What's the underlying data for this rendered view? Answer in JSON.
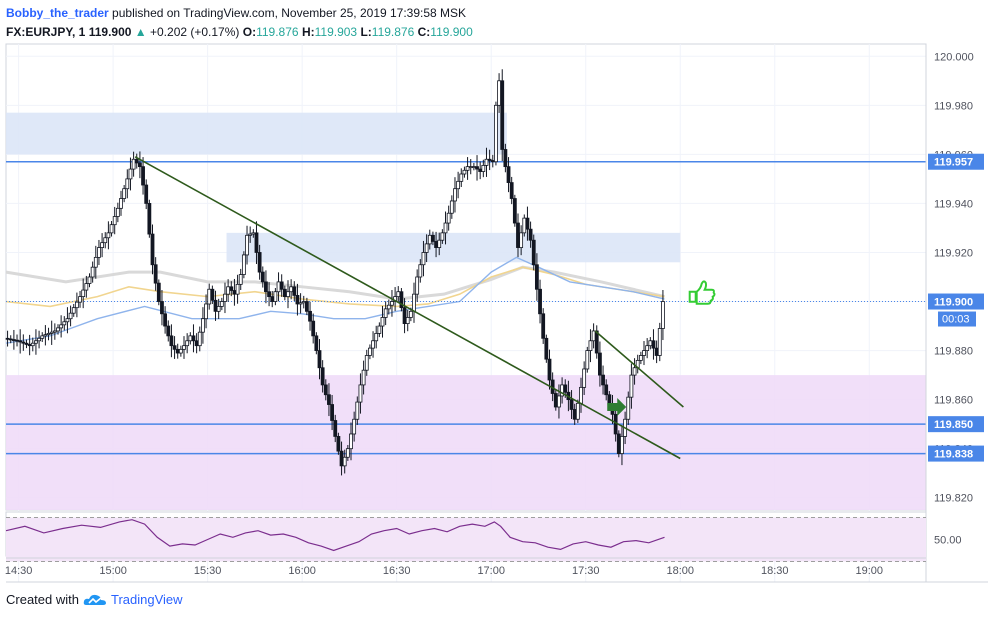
{
  "header": {
    "author": "Bobby_the_trader",
    "published": "published on TradingView.com, November 25, 2019 17:39:58 MSK",
    "symbol": "FX:EURJPY, 1",
    "last": "119.900",
    "change": "+0.202 (+0.17%)",
    "open_label": "O:",
    "open": "119.876",
    "high_label": "H:",
    "high": "119.903",
    "low_label": "L:",
    "low": "119.876",
    "close_label": "C:",
    "close": "119.900"
  },
  "footer": {
    "created_with": "Created with",
    "brand": "TradingView"
  },
  "colors": {
    "up": "#26a69a",
    "candle": "#131722",
    "level": "#4a86e8",
    "trend": "#2e5a1c",
    "zone_blue": "#dce6f7",
    "zone_purple": "#efdcf8",
    "ma_blue": "#8fb4ec",
    "ma_yellow": "#f1d58f",
    "ma_gray": "#d9d9d9",
    "rsi": "#7b2e8e",
    "current": "#4a86e8",
    "thumb": "#33cc33",
    "arrow": "#2e7d32"
  },
  "chart_data": {
    "type": "candlestick",
    "symbol": "FX:EURJPY",
    "timeframe": "1",
    "ylim": [
      119.815,
      120.005
    ],
    "y_ticks": [
      "120.000",
      "119.980",
      "119.960",
      "119.940",
      "119.920",
      "119.900",
      "119.880",
      "119.860",
      "119.840",
      "119.820"
    ],
    "x_ticks": [
      "14:30",
      "15:00",
      "15:30",
      "16:00",
      "16:30",
      "17:00",
      "17:30",
      "18:00",
      "18:30",
      "19:00"
    ],
    "x_tick_minutes": [
      870,
      900,
      930,
      960,
      990,
      1020,
      1050,
      1080,
      1110,
      1140
    ],
    "xlim_minutes": [
      866,
      1158
    ],
    "levels": [
      {
        "price": 119.957,
        "label": "119.957"
      },
      {
        "price": 119.85,
        "label": "119.850"
      },
      {
        "price": 119.838,
        "label": "119.838"
      }
    ],
    "current_price": {
      "price": 119.9,
      "label": "119.900",
      "countdown": "00:03"
    },
    "zones": [
      {
        "t1": 866,
        "t2": 1025,
        "p1": 119.977,
        "p2": 119.96
      },
      {
        "t1": 936,
        "t2": 1080,
        "p1": 119.928,
        "p2": 119.916
      },
      {
        "t1": 866,
        "t2": 1158,
        "p1": 119.87,
        "p2": 119.815
      }
    ],
    "trendlines": [
      {
        "t1": 907,
        "p1": 119.959,
        "t2": 1080,
        "p1e": 119.836,
        "p2": 119.836
      },
      {
        "t1": 1053,
        "p1": 119.888,
        "t2": 1081,
        "p2": 119.857
      }
    ],
    "candles_hint": "approximate 1-minute path",
    "path": [
      [
        866,
        119.885
      ],
      [
        870,
        119.884
      ],
      [
        874,
        119.882
      ],
      [
        878,
        119.886
      ],
      [
        882,
        119.888
      ],
      [
        886,
        119.893
      ],
      [
        890,
        119.902
      ],
      [
        893,
        119.91
      ],
      [
        896,
        119.922
      ],
      [
        899,
        119.928
      ],
      [
        902,
        119.938
      ],
      [
        905,
        119.95
      ],
      [
        907,
        119.958
      ],
      [
        909,
        119.955
      ],
      [
        911,
        119.94
      ],
      [
        913,
        119.915
      ],
      [
        915,
        119.9
      ],
      [
        917,
        119.89
      ],
      [
        919,
        119.882
      ],
      [
        921,
        119.879
      ],
      [
        923,
        119.882
      ],
      [
        925,
        119.886
      ],
      [
        927,
        119.882
      ],
      [
        929,
        119.893
      ],
      [
        931,
        119.905
      ],
      [
        933,
        119.896
      ],
      [
        935,
        119.9
      ],
      [
        937,
        119.906
      ],
      [
        939,
        119.903
      ],
      [
        941,
        119.911
      ],
      [
        943,
        119.927
      ],
      [
        945,
        119.928
      ],
      [
        947,
        119.912
      ],
      [
        949,
        119.904
      ],
      [
        951,
        119.9
      ],
      [
        953,
        119.908
      ],
      [
        955,
        119.902
      ],
      [
        957,
        119.906
      ],
      [
        959,
        119.899
      ],
      [
        961,
        119.9
      ],
      [
        963,
        119.892
      ],
      [
        965,
        119.88
      ],
      [
        967,
        119.866
      ],
      [
        969,
        119.858
      ],
      [
        971,
        119.845
      ],
      [
        973,
        119.833
      ],
      [
        975,
        119.84
      ],
      [
        977,
        119.852
      ],
      [
        979,
        119.866
      ],
      [
        981,
        119.878
      ],
      [
        983,
        119.884
      ],
      [
        985,
        119.89
      ],
      [
        987,
        119.897
      ],
      [
        989,
        119.9
      ],
      [
        991,
        119.904
      ],
      [
        993,
        119.891
      ],
      [
        995,
        119.896
      ],
      [
        997,
        119.91
      ],
      [
        999,
        119.92
      ],
      [
        1001,
        119.927
      ],
      [
        1003,
        119.922
      ],
      [
        1005,
        119.928
      ],
      [
        1007,
        119.936
      ],
      [
        1009,
        119.946
      ],
      [
        1011,
        119.952
      ],
      [
        1013,
        119.955
      ],
      [
        1015,
        119.955
      ],
      [
        1017,
        119.953
      ],
      [
        1019,
        119.958
      ],
      [
        1021,
        119.957
      ],
      [
        1022,
        119.98
      ],
      [
        1023,
        119.99
      ],
      [
        1024,
        119.962
      ],
      [
        1025,
        119.955
      ],
      [
        1027,
        119.942
      ],
      [
        1029,
        119.922
      ],
      [
        1031,
        119.934
      ],
      [
        1033,
        119.925
      ],
      [
        1035,
        119.905
      ],
      [
        1037,
        119.885
      ],
      [
        1039,
        119.868
      ],
      [
        1041,
        119.857
      ],
      [
        1043,
        119.866
      ],
      [
        1045,
        119.86
      ],
      [
        1047,
        119.852
      ],
      [
        1049,
        119.865
      ],
      [
        1051,
        119.88
      ],
      [
        1053,
        119.888
      ],
      [
        1055,
        119.87
      ],
      [
        1057,
        119.862
      ],
      [
        1059,
        119.854
      ],
      [
        1061,
        119.838
      ],
      [
        1063,
        119.852
      ],
      [
        1065,
        119.87
      ],
      [
        1067,
        119.876
      ],
      [
        1069,
        119.88
      ],
      [
        1071,
        119.884
      ],
      [
        1073,
        119.878
      ],
      [
        1075,
        119.9
      ]
    ],
    "ma_blue": [
      [
        866,
        119.883
      ],
      [
        880,
        119.886
      ],
      [
        895,
        119.893
      ],
      [
        910,
        119.898
      ],
      [
        925,
        119.893
      ],
      [
        940,
        119.893
      ],
      [
        950,
        119.896
      ],
      [
        960,
        119.895
      ],
      [
        970,
        119.893
      ],
      [
        980,
        119.893
      ],
      [
        990,
        119.896
      ],
      [
        1000,
        119.898
      ],
      [
        1010,
        119.9
      ],
      [
        1020,
        119.912
      ],
      [
        1028,
        119.918
      ],
      [
        1035,
        119.914
      ],
      [
        1045,
        119.908
      ],
      [
        1055,
        119.906
      ],
      [
        1065,
        119.904
      ],
      [
        1075,
        119.901
      ]
    ],
    "ma_yellow": [
      [
        866,
        119.9
      ],
      [
        880,
        119.898
      ],
      [
        895,
        119.902
      ],
      [
        905,
        119.906
      ],
      [
        915,
        119.904
      ],
      [
        930,
        119.902
      ],
      [
        945,
        119.904
      ],
      [
        960,
        119.901
      ],
      [
        975,
        119.899
      ],
      [
        990,
        119.898
      ],
      [
        1000,
        119.899
      ],
      [
        1010,
        119.903
      ],
      [
        1020,
        119.91
      ],
      [
        1030,
        119.914
      ],
      [
        1040,
        119.911
      ],
      [
        1050,
        119.907
      ],
      [
        1060,
        119.905
      ],
      [
        1075,
        119.902
      ]
    ],
    "ma_gray": [
      [
        866,
        119.912
      ],
      [
        885,
        119.908
      ],
      [
        905,
        119.912
      ],
      [
        915,
        119.912
      ],
      [
        930,
        119.908
      ],
      [
        945,
        119.908
      ],
      [
        960,
        119.906
      ],
      [
        975,
        119.904
      ],
      [
        990,
        119.901
      ],
      [
        1005,
        119.903
      ],
      [
        1020,
        119.909
      ],
      [
        1030,
        119.914
      ],
      [
        1040,
        119.912
      ],
      [
        1055,
        119.908
      ],
      [
        1075,
        119.902
      ]
    ],
    "rsi": {
      "ylim": [
        35,
        75
      ],
      "upper": 70,
      "lower": 30,
      "tick_label": "50.00",
      "tick_value": 50,
      "path": [
        [
          866,
          58
        ],
        [
          872,
          62
        ],
        [
          878,
          56
        ],
        [
          884,
          60
        ],
        [
          890,
          63
        ],
        [
          896,
          61
        ],
        [
          902,
          66
        ],
        [
          906,
          68
        ],
        [
          910,
          64
        ],
        [
          914,
          52
        ],
        [
          918,
          44
        ],
        [
          922,
          46
        ],
        [
          926,
          45
        ],
        [
          930,
          50
        ],
        [
          934,
          55
        ],
        [
          938,
          52
        ],
        [
          942,
          56
        ],
        [
          946,
          58
        ],
        [
          950,
          54
        ],
        [
          954,
          55
        ],
        [
          958,
          52
        ],
        [
          962,
          47
        ],
        [
          966,
          44
        ],
        [
          970,
          40
        ],
        [
          974,
          44
        ],
        [
          978,
          48
        ],
        [
          982,
          55
        ],
        [
          986,
          58
        ],
        [
          990,
          60
        ],
        [
          994,
          55
        ],
        [
          998,
          58
        ],
        [
          1002,
          60
        ],
        [
          1006,
          57
        ],
        [
          1010,
          62
        ],
        [
          1014,
          64
        ],
        [
          1018,
          62
        ],
        [
          1021,
          66
        ],
        [
          1023,
          62
        ],
        [
          1026,
          52
        ],
        [
          1030,
          48
        ],
        [
          1034,
          47
        ],
        [
          1038,
          43
        ],
        [
          1042,
          41
        ],
        [
          1046,
          46
        ],
        [
          1050,
          48
        ],
        [
          1054,
          45
        ],
        [
          1058,
          43
        ],
        [
          1062,
          48
        ],
        [
          1066,
          49
        ],
        [
          1070,
          47
        ],
        [
          1075,
          52
        ]
      ]
    }
  }
}
